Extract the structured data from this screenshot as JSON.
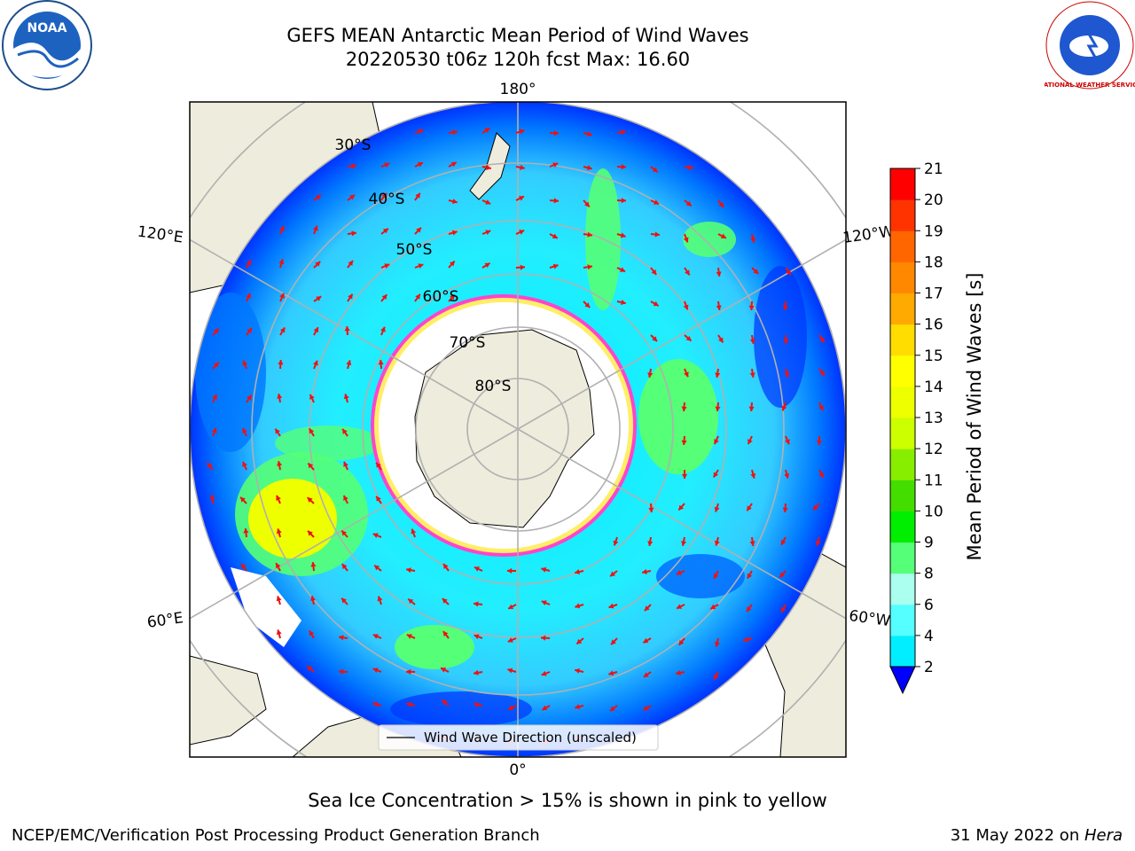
{
  "title": {
    "line1": "GEFS MEAN Antarctic Mean Period of Wind Waves",
    "line2": "20220530 t06z 120h fcst   Max: 16.60"
  },
  "map": {
    "lon_labels": [
      "180°",
      "120°E",
      "120°W",
      "60°E",
      "60°W",
      "0°"
    ],
    "lat_labels": [
      "30°S",
      "40°S",
      "50°S",
      "60°S",
      "70°S",
      "80°S"
    ],
    "legend_label": "Wind Wave Direction (unscaled)",
    "colors": {
      "land": "#eeecdc",
      "ice": "#ffffff",
      "ice_edge": "#ff44cc",
      "arrow": "#ee1111",
      "grid": "#b0b0b0"
    }
  },
  "colorbar": {
    "label": "Mean Period of Wind Waves [s]",
    "ticks": [
      "21",
      "20",
      "19",
      "18",
      "17",
      "16",
      "15",
      "14",
      "13",
      "12",
      "11",
      "10",
      "9",
      "8",
      "6",
      "4",
      "2"
    ],
    "colors": [
      "#ff0000",
      "#ff3300",
      "#ff6600",
      "#ff8800",
      "#ffaa00",
      "#ffdd00",
      "#ffff00",
      "#eeff00",
      "#ccff00",
      "#88ee00",
      "#44dd00",
      "#00ee00",
      "#55ff77",
      "#aaffee",
      "#55ffff",
      "#00eeff",
      "#0088ff",
      "#0000ff"
    ]
  },
  "subcaption": "Sea Ice Concentration > 15% is shown in pink to yellow",
  "footer": {
    "left": "NCEP/EMC/Verification Post Processing Product Generation Branch",
    "date": "31 May 2022 on ",
    "machine": "Hera"
  },
  "logos": {
    "noaa_text": "NOAA",
    "nws_text": "NATIONAL WEATHER SERVICE"
  }
}
